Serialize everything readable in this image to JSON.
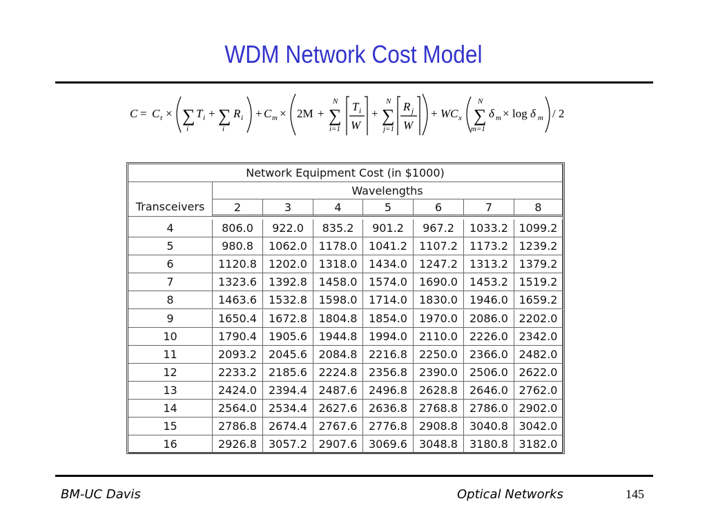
{
  "title": "WDM Network Cost Model",
  "formula": [
    "C",
    "=",
    "C",
    "t",
    "×",
    "∑",
    "i",
    "T",
    "i",
    "+",
    "∑",
    "i",
    "R",
    "i",
    "+",
    "C",
    "m",
    "×",
    "2M",
    "+",
    "N",
    "∑",
    "i=1",
    "T",
    "i",
    "W",
    "+",
    "N",
    "∑",
    "j=1",
    "R",
    "j",
    "W",
    "+",
    "WC",
    "x",
    "N",
    "∑",
    "m=1",
    "δ",
    "m",
    "×",
    "log",
    "δ",
    "m",
    "/ 2"
  ],
  "table": {
    "caption": "Network Equipment Cost (in $1000)",
    "group_header": "Wavelengths",
    "row_header": "Transceivers",
    "columns": [
      "2",
      "3",
      "4",
      "5",
      "6",
      "7",
      "8"
    ],
    "rows": [
      [
        "4",
        "806.0",
        "922.0",
        "835.2",
        "901.2",
        "967.2",
        "1033.2",
        "1099.2"
      ],
      [
        "5",
        "980.8",
        "1062.0",
        "1178.0",
        "1041.2",
        "1107.2",
        "1173.2",
        "1239.2"
      ],
      [
        "6",
        "1120.8",
        "1202.0",
        "1318.0",
        "1434.0",
        "1247.2",
        "1313.2",
        "1379.2"
      ],
      [
        "7",
        "1323.6",
        "1392.8",
        "1458.0",
        "1574.0",
        "1690.0",
        "1453.2",
        "1519.2"
      ],
      [
        "8",
        "1463.6",
        "1532.8",
        "1598.0",
        "1714.0",
        "1830.0",
        "1946.0",
        "1659.2"
      ],
      [
        "9",
        "1650.4",
        "1672.8",
        "1804.8",
        "1854.0",
        "1970.0",
        "2086.0",
        "2202.0"
      ],
      [
        "10",
        "1790.4",
        "1905.6",
        "1944.8",
        "1994.0",
        "2110.0",
        "2226.0",
        "2342.0"
      ],
      [
        "11",
        "2093.2",
        "2045.6",
        "2084.8",
        "2216.8",
        "2250.0",
        "2366.0",
        "2482.0"
      ],
      [
        "12",
        "2233.2",
        "2185.6",
        "2224.8",
        "2356.8",
        "2390.0",
        "2506.0",
        "2622.0"
      ],
      [
        "13",
        "2424.0",
        "2394.4",
        "2487.6",
        "2496.8",
        "2628.8",
        "2646.0",
        "2762.0"
      ],
      [
        "14",
        "2564.0",
        "2534.4",
        "2627.6",
        "2636.8",
        "2768.8",
        "2786.0",
        "2902.0"
      ],
      [
        "15",
        "2786.8",
        "2674.4",
        "2767.6",
        "2776.8",
        "2908.8",
        "3040.8",
        "3042.0"
      ],
      [
        "16",
        "2926.8",
        "3057.2",
        "2907.6",
        "3069.6",
        "3048.8",
        "3180.8",
        "3182.0"
      ]
    ]
  },
  "footer": {
    "left": "BM-UC Davis",
    "center": "Optical Networks",
    "page": "145"
  }
}
